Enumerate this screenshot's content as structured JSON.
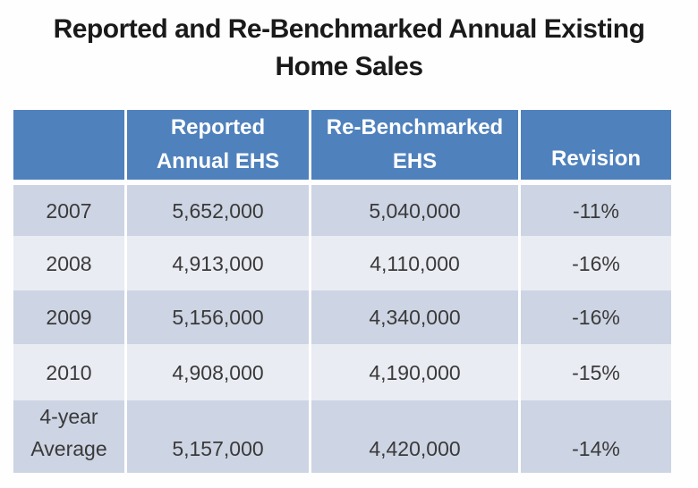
{
  "title": {
    "line1": "Reported and Re-Benchmarked Annual Existing",
    "line2": "Home Sales"
  },
  "table": {
    "headers": {
      "year": "",
      "reported": "Reported\nAnnual EHS",
      "rebenchmarked": "Re-Benchmarked\nEHS",
      "revision": "Revision"
    },
    "rows": [
      {
        "label": "2007",
        "reported": "5,652,000",
        "rebenchmarked": "5,040,000",
        "revision": "-11%"
      },
      {
        "label": "2008",
        "reported": "4,913,000",
        "rebenchmarked": "4,110,000",
        "revision": "-16%"
      },
      {
        "label": "2009",
        "reported": "5,156,000",
        "rebenchmarked": "4,340,000",
        "revision": "-16%"
      },
      {
        "label": "2010",
        "reported": "4,908,000",
        "rebenchmarked": "4,190,000",
        "revision": "-15%"
      },
      {
        "label": "4-year\nAverage",
        "reported": "5,157,000",
        "rebenchmarked": "4,420,000",
        "revision": "-14%"
      }
    ]
  },
  "colors": {
    "header_bg": "#4f81bd",
    "header_text": "#ffffff",
    "row_dark": "#cdd4e3",
    "row_light": "#eaecf3",
    "body_text": "#3a3a3a",
    "title_text": "#1a1a1a"
  },
  "chart_data": {
    "type": "table",
    "title": "Reported and Re-Benchmarked Annual Existing Home Sales",
    "columns": [
      "",
      "Reported Annual EHS",
      "Re-Benchmarked EHS",
      "Revision"
    ],
    "rows": [
      [
        "2007",
        5652000,
        5040000,
        "-11%"
      ],
      [
        "2008",
        4913000,
        4110000,
        "-16%"
      ],
      [
        "2009",
        5156000,
        4340000,
        "-16%"
      ],
      [
        "2010",
        4908000,
        4190000,
        "-15%"
      ],
      [
        "4-year Average",
        5157000,
        4420000,
        "-14%"
      ]
    ]
  }
}
